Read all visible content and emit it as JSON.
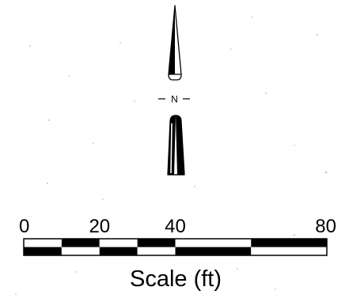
{
  "north_arrow": {
    "label": "N"
  },
  "scale_bar": {
    "title": "Scale (ft)",
    "ticks": [
      {
        "value": 0,
        "label": "0"
      },
      {
        "value": 20,
        "label": "20"
      },
      {
        "value": 40,
        "label": "40"
      },
      {
        "value": 80,
        "label": "80"
      }
    ],
    "max": 80,
    "segments": [
      {
        "from": 0,
        "to": 10,
        "top": "white",
        "bottom": "black"
      },
      {
        "from": 10,
        "to": 20,
        "top": "black",
        "bottom": "white"
      },
      {
        "from": 20,
        "to": 30,
        "top": "white",
        "bottom": "black"
      },
      {
        "from": 30,
        "to": 40,
        "top": "black",
        "bottom": "white"
      },
      {
        "from": 40,
        "to": 60,
        "top": "white",
        "bottom": "black"
      },
      {
        "from": 60,
        "to": 80,
        "top": "black",
        "bottom": "white"
      }
    ],
    "colors": {
      "black": "#000000",
      "white": "#ffffff"
    }
  }
}
